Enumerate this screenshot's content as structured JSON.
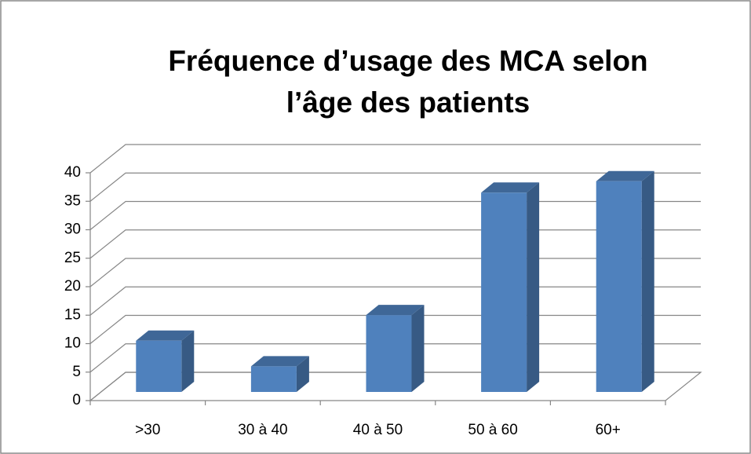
{
  "chart_data": {
    "type": "bar3d",
    "title": [
      "Fréquence d’usage des MCA selon",
      "l’âge des patients"
    ],
    "categories": [
      ">30",
      "30 à 40",
      "40 à 50",
      "50 à 60",
      "60+"
    ],
    "values": [
      9,
      4.5,
      13.5,
      35,
      37
    ],
    "color": "#4f81bd",
    "ylim": [
      0,
      40
    ],
    "yticks": [
      0,
      5,
      10,
      15,
      20,
      25,
      30,
      35,
      40
    ],
    "grid": true
  }
}
